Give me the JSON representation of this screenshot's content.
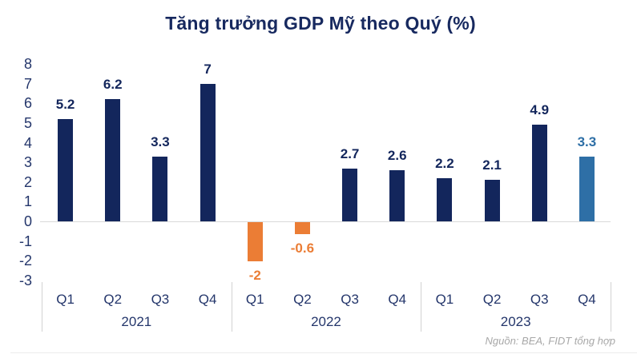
{
  "chart": {
    "title": "Tăng trưởng GDP Mỹ theo Quý (%)",
    "source": "Nguồn: BEA, FIDT tổng hợp"
  },
  "chart_data": {
    "type": "bar",
    "title": "Tăng trưởng GDP Mỹ theo Quý (%)",
    "source": "Nguồn: BEA, FIDT tổng hợp",
    "xlabel": "",
    "ylabel": "",
    "ylim": [
      -3,
      8
    ],
    "yticks": [
      8,
      7,
      6,
      5,
      4,
      3,
      2,
      1,
      0,
      -1,
      -2,
      -3
    ],
    "grid": "zero-line-only",
    "legend": "none",
    "categories": [
      "Q1",
      "Q2",
      "Q3",
      "Q4",
      "Q1",
      "Q2",
      "Q3",
      "Q4",
      "Q1",
      "Q2",
      "Q3",
      "Q4"
    ],
    "values": [
      5.2,
      6.2,
      3.3,
      7,
      -2,
      -0.6,
      2.7,
      2.6,
      2.2,
      2.1,
      4.9,
      3.3
    ],
    "bars": [
      {
        "quarter": "Q1",
        "year": "2021",
        "value": 5.2,
        "label": "5.2",
        "color": "navy"
      },
      {
        "quarter": "Q2",
        "year": "2021",
        "value": 6.2,
        "label": "6.2",
        "color": "navy"
      },
      {
        "quarter": "Q3",
        "year": "2021",
        "value": 3.3,
        "label": "3.3",
        "color": "navy"
      },
      {
        "quarter": "Q4",
        "year": "2021",
        "value": 7,
        "label": "7",
        "color": "navy"
      },
      {
        "quarter": "Q1",
        "year": "2022",
        "value": -2,
        "label": "-2",
        "color": "orange"
      },
      {
        "quarter": "Q2",
        "year": "2022",
        "value": -0.6,
        "label": "-0.6",
        "color": "orange"
      },
      {
        "quarter": "Q3",
        "year": "2022",
        "value": 2.7,
        "label": "2.7",
        "color": "navy"
      },
      {
        "quarter": "Q4",
        "year": "2022",
        "value": 2.6,
        "label": "2.6",
        "color": "navy"
      },
      {
        "quarter": "Q1",
        "year": "2023",
        "value": 2.2,
        "label": "2.2",
        "color": "navy"
      },
      {
        "quarter": "Q2",
        "year": "2023",
        "value": 2.1,
        "label": "2.1",
        "color": "navy"
      },
      {
        "quarter": "Q3",
        "year": "2023",
        "value": 4.9,
        "label": "4.9",
        "color": "navy"
      },
      {
        "quarter": "Q4",
        "year": "2023",
        "value": 3.3,
        "label": "3.3",
        "color": "blue"
      }
    ],
    "year_groups": [
      {
        "label": "2021",
        "quarters": [
          "Q1",
          "Q2",
          "Q3",
          "Q4"
        ],
        "values": [
          5.2,
          6.2,
          3.3,
          7
        ]
      },
      {
        "label": "2022",
        "quarters": [
          "Q1",
          "Q2",
          "Q3",
          "Q4"
        ],
        "values": [
          -2,
          -0.6,
          2.7,
          2.6
        ]
      },
      {
        "label": "2023",
        "quarters": [
          "Q1",
          "Q2",
          "Q3",
          "Q4"
        ],
        "values": [
          2.2,
          2.1,
          4.9,
          3.3
        ]
      }
    ],
    "colors": {
      "navy": "#13265C",
      "orange": "#EB7D35",
      "blue": "#2E6FA6",
      "title_text": "#17295F",
      "axis_text": "#24366B",
      "zero_line": "#D9D9D9",
      "divider": "#D2D2D2",
      "bottom_line": "#ECECEC",
      "source_text": "#A8A8A8"
    }
  }
}
